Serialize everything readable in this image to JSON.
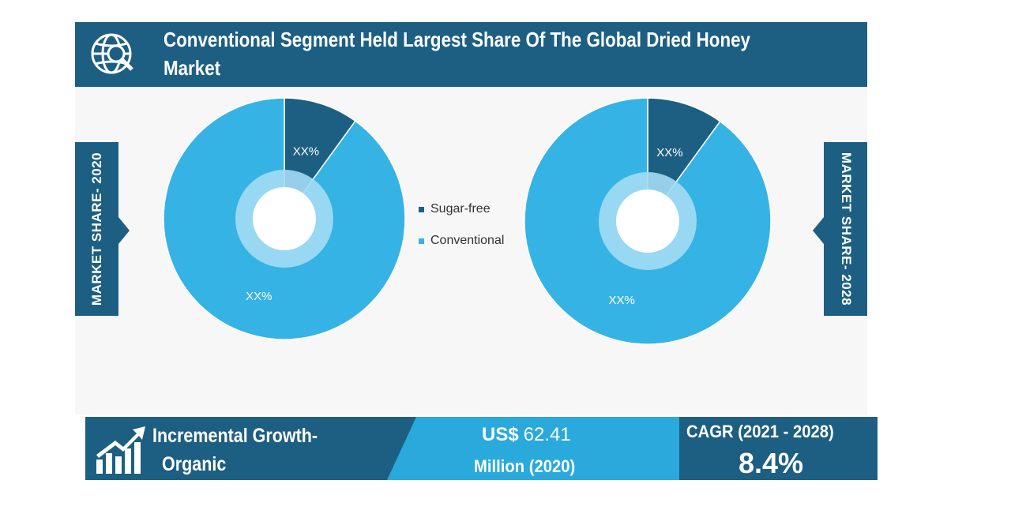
{
  "header": {
    "title_line1": "Conventional Segment Held Largest Share Of The Global Dried Honey",
    "title_line2": "Market",
    "icon": "globe-search-icon"
  },
  "side_labels": {
    "left": "MARKET SHARE- 2020",
    "right": "MARKET SHARE- 2028"
  },
  "chart_data": [
    {
      "type": "pie",
      "title": "MARKET SHARE- 2020",
      "categories": [
        "Sugar-free",
        "Conventional"
      ],
      "values": [
        10,
        90
      ],
      "labels": [
        "XX%",
        "XX%"
      ],
      "colors": [
        "#1d5f82",
        "#36b3e5"
      ]
    },
    {
      "type": "pie",
      "title": "MARKET SHARE- 2028",
      "categories": [
        "Sugar-free",
        "Conventional"
      ],
      "values": [
        10,
        90
      ],
      "labels": [
        "XX%",
        "XX%"
      ],
      "colors": [
        "#1d5f82",
        "#36b3e5"
      ]
    }
  ],
  "legend": {
    "items": [
      {
        "label": "Sugar-free",
        "color": "#1d5f82"
      },
      {
        "label": "Conventional",
        "color": "#36b3e5"
      }
    ]
  },
  "footer": {
    "icon": "growth-chart-icon",
    "growth_label_line1": "Incremental Growth-",
    "growth_label_line2": "Organic",
    "value_prefix": "US$",
    "value_number": "62.41",
    "value_unit": "Million (2020)",
    "cagr_label": "CAGR (2021 - 2028)",
    "cagr_value": "8.4%"
  },
  "colors": {
    "dark_blue": "#1d5f82",
    "light_blue": "#36b3e5",
    "inner_ring": "#a3dcf4",
    "mid_blue": "#2aa9dc"
  }
}
